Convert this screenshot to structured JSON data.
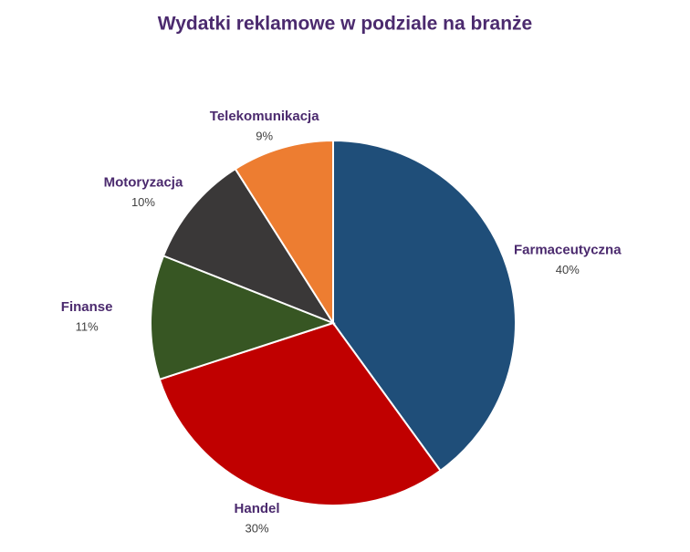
{
  "chart_data": {
    "type": "pie",
    "title": "Wydatki reklamowe w podziale na branże",
    "categories": [
      "Farmaceutyczna",
      "Handel",
      "Finanse",
      "Motoryzacja",
      "Telekomunikacja"
    ],
    "values": [
      40,
      30,
      11,
      10,
      9
    ],
    "value_labels": [
      "40%",
      "30%",
      "11%",
      "10%",
      "9%"
    ],
    "colors": [
      "#1f4e79",
      "#c00000",
      "#375623",
      "#3a3838",
      "#ed7d31"
    ]
  }
}
